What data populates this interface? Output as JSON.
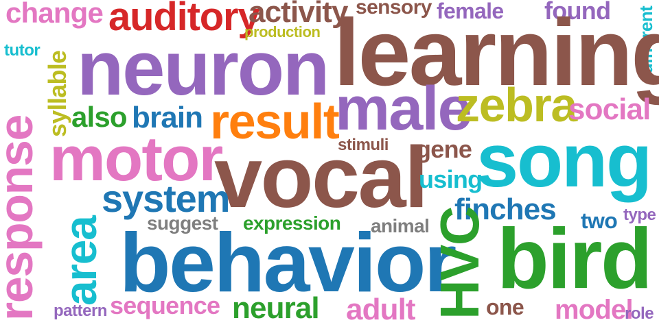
{
  "words": [
    {
      "text": "change",
      "color": "#e377c2"
    },
    {
      "text": "auditory",
      "color": "#d62728"
    },
    {
      "text": "activity",
      "color": "#8c564b"
    },
    {
      "text": "sensory",
      "color": "#8c564b"
    },
    {
      "text": "female",
      "color": "#9467bd"
    },
    {
      "text": "found",
      "color": "#9467bd"
    },
    {
      "text": "different",
      "color": "#17becf"
    },
    {
      "text": "production",
      "color": "#bcbd22"
    },
    {
      "text": "learning",
      "color": "#8c564b"
    },
    {
      "text": "neuron",
      "color": "#9467bd"
    },
    {
      "text": "tutor",
      "color": "#17becf"
    },
    {
      "text": "syllable",
      "color": "#bcbd22"
    },
    {
      "text": "response",
      "color": "#e377c2"
    },
    {
      "text": "male",
      "color": "#9467bd"
    },
    {
      "text": "zebra",
      "color": "#bcbd22"
    },
    {
      "text": "social",
      "color": "#e377c2"
    },
    {
      "text": "also",
      "color": "#2ca02c"
    },
    {
      "text": "brain",
      "color": "#1f77b4"
    },
    {
      "text": "result",
      "color": "#ff7f0e"
    },
    {
      "text": "stimuli",
      "color": "#8c564b"
    },
    {
      "text": "gene",
      "color": "#8c564b"
    },
    {
      "text": "song",
      "color": "#17becf"
    },
    {
      "text": "motor",
      "color": "#e377c2"
    },
    {
      "text": "vocal",
      "color": "#8c564b"
    },
    {
      "text": "using",
      "color": "#17becf"
    },
    {
      "text": "system",
      "color": "#1f77b4"
    },
    {
      "text": "area",
      "color": "#17becf"
    },
    {
      "text": "finches",
      "color": "#1f77b4"
    },
    {
      "text": "suggest",
      "color": "#7f7f7f"
    },
    {
      "text": "expression",
      "color": "#2ca02c"
    },
    {
      "text": "animal",
      "color": "#7f7f7f"
    },
    {
      "text": "two",
      "color": "#1f77b4"
    },
    {
      "text": "type",
      "color": "#9467bd"
    },
    {
      "text": "behavior",
      "color": "#1f77b4"
    },
    {
      "text": "HVC",
      "color": "#2ca02c"
    },
    {
      "text": "bird",
      "color": "#2ca02c"
    },
    {
      "text": "sequence",
      "color": "#e377c2"
    },
    {
      "text": "neural",
      "color": "#2ca02c"
    },
    {
      "text": "adult",
      "color": "#e377c2"
    },
    {
      "text": "one",
      "color": "#8c564b"
    },
    {
      "text": "model",
      "color": "#e377c2"
    },
    {
      "text": "role",
      "color": "#9467bd"
    },
    {
      "text": "pattern",
      "color": "#9467bd"
    }
  ]
}
